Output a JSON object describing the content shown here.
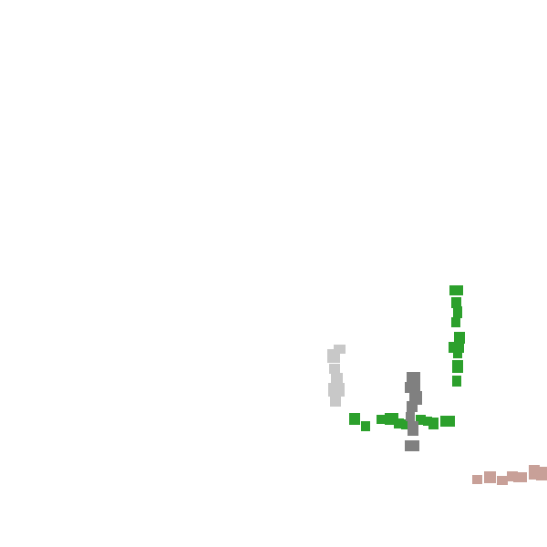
{
  "scene": {
    "background": "#ffffff",
    "groups": [
      {
        "name": "green-l-shape",
        "color": "#2ca02c",
        "blocks": [
          [
            493,
            313,
            15,
            11
          ],
          [
            495,
            326,
            11,
            12
          ],
          [
            497,
            336,
            10,
            13
          ],
          [
            495,
            348,
            10,
            11
          ],
          [
            498,
            364,
            12,
            13
          ],
          [
            492,
            375,
            17,
            12
          ],
          [
            497,
            384,
            10,
            9
          ],
          [
            496,
            395,
            12,
            14
          ],
          [
            496,
            412,
            10,
            12
          ],
          [
            383,
            453,
            12,
            13
          ],
          [
            396,
            462,
            10,
            11
          ],
          [
            413,
            455,
            10,
            10
          ],
          [
            422,
            453,
            15,
            13
          ],
          [
            432,
            459,
            11,
            11
          ],
          [
            440,
            460,
            11,
            11
          ],
          [
            456,
            455,
            11,
            11
          ],
          [
            464,
            457,
            10,
            10
          ],
          [
            470,
            458,
            11,
            13
          ],
          [
            483,
            456,
            16,
            12
          ]
        ]
      },
      {
        "name": "dark-gray-column",
        "color": "#808080",
        "blocks": [
          [
            446,
            408,
            15,
            12
          ],
          [
            444,
            419,
            17,
            12
          ],
          [
            449,
            429,
            14,
            15
          ],
          [
            446,
            440,
            12,
            12
          ],
          [
            445,
            452,
            10,
            10
          ],
          [
            447,
            462,
            12,
            16
          ],
          [
            444,
            483,
            16,
            12
          ]
        ]
      },
      {
        "name": "light-gray-column",
        "color": "#c8c8c8",
        "blocks": [
          [
            366,
            378,
            13,
            10
          ],
          [
            359,
            383,
            14,
            15
          ],
          [
            361,
            399,
            12,
            11
          ],
          [
            363,
            409,
            13,
            13
          ],
          [
            360,
            420,
            18,
            15
          ],
          [
            362,
            434,
            12,
            12
          ]
        ]
      },
      {
        "name": "pink-row",
        "color": "#c8a098",
        "blocks": [
          [
            518,
            521,
            11,
            10
          ],
          [
            531,
            517,
            13,
            13
          ],
          [
            545,
            522,
            12,
            10
          ],
          [
            556,
            517,
            12,
            11
          ],
          [
            563,
            518,
            15,
            11
          ],
          [
            580,
            510,
            12,
            16
          ],
          [
            588,
            512,
            12,
            15
          ]
        ]
      }
    ]
  }
}
